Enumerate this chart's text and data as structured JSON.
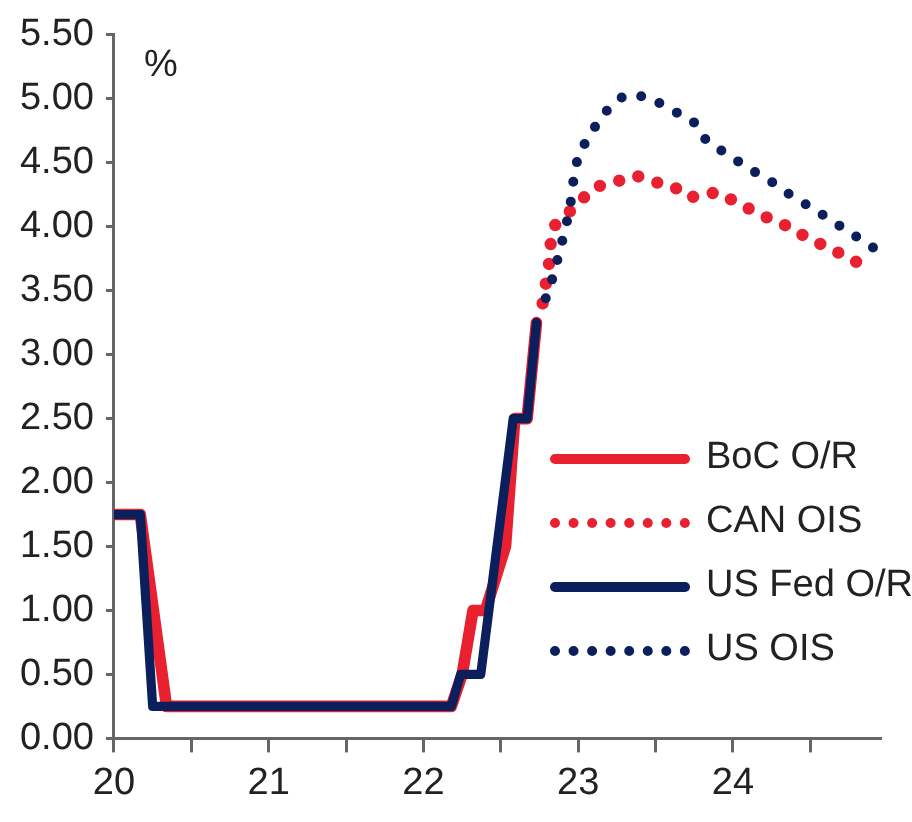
{
  "chart_data": {
    "type": "line",
    "ylabel": "%",
    "xlim": [
      20,
      24.95
    ],
    "xticks": [
      20,
      {
        "value": 20.5,
        "label": null
      },
      21,
      {
        "value": 21.5,
        "label": null
      },
      22,
      {
        "value": 22.5,
        "label": null
      },
      23,
      {
        "value": 23.5,
        "label": null
      },
      24,
      {
        "value": 24.5,
        "label": null
      }
    ],
    "ylim": [
      0,
      5.5
    ],
    "yticks": [
      {
        "value": 0,
        "label": "0.00"
      },
      {
        "value": 0.5,
        "label": "0.50"
      },
      {
        "value": 1,
        "label": "1.00"
      },
      {
        "value": 1.5,
        "label": "1.50"
      },
      {
        "value": 2,
        "label": "2.00"
      },
      {
        "value": 2.5,
        "label": "2.50"
      },
      {
        "value": 3,
        "label": "3.00"
      },
      {
        "value": 3.5,
        "label": "3.50"
      },
      {
        "value": 4,
        "label": "4.00"
      },
      {
        "value": 4.5,
        "label": "4.50"
      },
      {
        "value": 5,
        "label": "5.00"
      },
      {
        "value": 5.5,
        "label": "5.50"
      }
    ],
    "grid": false,
    "legend": "right",
    "marker": "none",
    "series": [
      {
        "name": "BoC O/R",
        "color": "#e8202f",
        "line_style": "solid",
        "x": [
          20,
          20.17,
          20.34,
          22.18,
          22.25,
          22.32,
          22.4,
          22.53,
          22.59,
          22.67,
          22.73
        ],
        "values": [
          1.75,
          1.75,
          0.25,
          0.25,
          0.5,
          1,
          1,
          1.5,
          2.5,
          2.5,
          3.25
        ]
      },
      {
        "name": "CAN OIS",
        "color": "#e8202f",
        "line_style": "dotted",
        "x": [
          22.77,
          22.79,
          22.81,
          22.82,
          22.84,
          22.93,
          23.02,
          23.11,
          23.24,
          23.37,
          23.49,
          23.61,
          23.71,
          23.8,
          23.89,
          24.01,
          24.12,
          24.24,
          24.36,
          24.47,
          24.59,
          24.71,
          24.82
        ],
        "values": [
          3.4,
          3.55,
          3.69,
          3.85,
          4.0,
          4.1,
          4.21,
          4.31,
          4.35,
          4.4,
          4.35,
          4.32,
          4.23,
          4.24,
          4.27,
          4.2,
          4.13,
          4.06,
          4.0,
          3.92,
          3.85,
          3.78,
          3.71
        ]
      },
      {
        "name": "US Fed O/R",
        "color": "#0a1f5c",
        "line_style": "solid",
        "x": [
          20,
          20.17,
          20.25,
          22.18,
          22.24,
          22.37,
          22.58,
          22.67,
          22.73
        ],
        "values": [
          1.75,
          1.75,
          0.25,
          0.25,
          0.5,
          0.5,
          2.5,
          2.5,
          3.25
        ]
      },
      {
        "name": "US OIS",
        "color": "#0a1f5c",
        "line_style": "dotted",
        "x": [
          22.79,
          22.84,
          22.88,
          22.92,
          22.95,
          22.97,
          23.0,
          23.08,
          23.17,
          23.29,
          23.45,
          23.59,
          23.74,
          23.83,
          23.97,
          24.11,
          24.25,
          24.38,
          24.52,
          24.66,
          24.8,
          24.94
        ],
        "values": [
          3.44,
          3.62,
          3.81,
          4.0,
          4.18,
          4.37,
          4.56,
          4.73,
          4.89,
          5.02,
          5.02,
          4.92,
          4.83,
          4.67,
          4.56,
          4.45,
          4.35,
          4.24,
          4.14,
          4.03,
          3.92,
          3.81
        ]
      }
    ]
  }
}
